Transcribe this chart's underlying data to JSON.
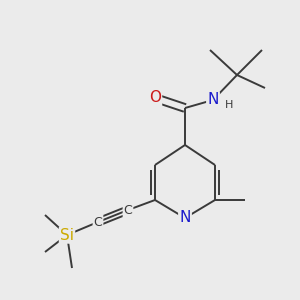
{
  "background_color": "#ebebeb",
  "atom_colors": {
    "C": "#3a3a3a",
    "N": "#1a1acc",
    "O": "#cc1a1a",
    "Si": "#ccaa00",
    "H": "#3a3a3a"
  },
  "bond_color": "#3a3a3a",
  "bond_lw": 1.4,
  "font_size_large": 11,
  "font_size_medium": 9,
  "font_size_small": 8
}
